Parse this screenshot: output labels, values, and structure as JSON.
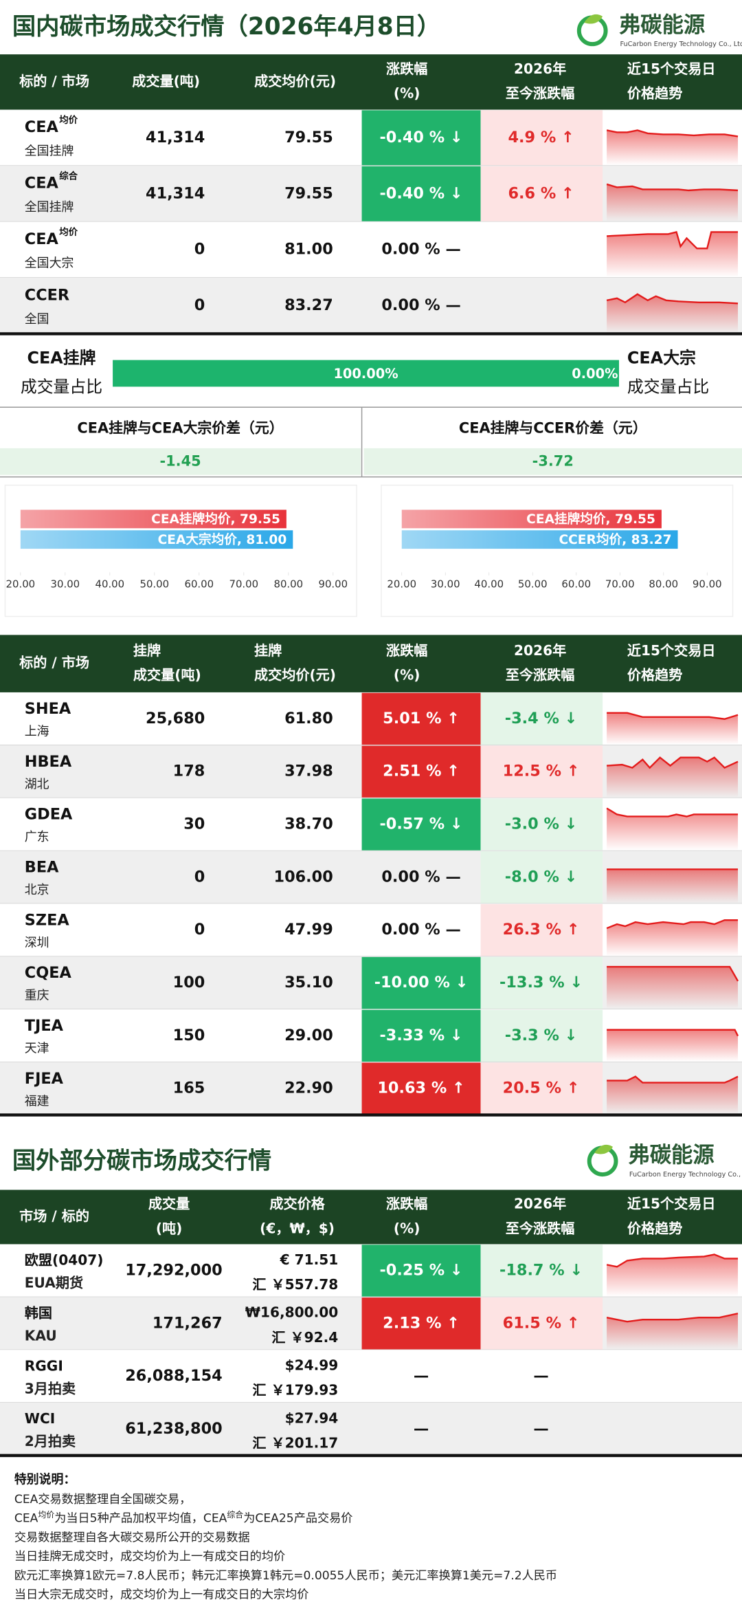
{
  "header": {
    "title": "国内碳市场成交行情（2026年4月8日）",
    "logo": "弗碳能源",
    "logo_sub": "FuCarbon Energy Technology Co., Ltd"
  },
  "domestic": {
    "columns": [
      [
        "标的 / 市场"
      ],
      [
        "成交量(吨)"
      ],
      [
        "成交均价(元)"
      ],
      [
        "涨跌幅",
        "(%)"
      ],
      [
        "2026年",
        "至今涨跌幅"
      ],
      [
        "近15个交易日",
        "价格趋势"
      ]
    ],
    "rows": [
      {
        "name": "CEA",
        "sup": "均价",
        "market": "全国挂牌",
        "volume": "41,314",
        "price": "79.55",
        "change": "-0.40 % ↓",
        "ytd": "4.9 % ↑"
      },
      {
        "name": "CEA",
        "sup": "综合",
        "market": "全国挂牌",
        "volume": "41,314",
        "price": "79.55",
        "change": "-0.40 % ↓",
        "ytd": "6.6 % ↑"
      },
      {
        "name": "CEA",
        "sup": "均价",
        "market": "全国大宗",
        "volume": "0",
        "price": "81.00",
        "change": "0.00 % —"
      },
      {
        "name": "CCER",
        "market": "全国",
        "volume": "0",
        "price": "83.27",
        "change": "0.00 % —"
      }
    ]
  },
  "share": {
    "left_label": [
      "CEA挂牌",
      "成交量占比"
    ],
    "right_label": [
      "CEA大宗",
      "成交量占比"
    ],
    "values": [
      100,
      0
    ],
    "value_labels": [
      "100.00%",
      "0.00%"
    ]
  },
  "spreads": [
    {
      "title": "CEA挂牌与CEA大宗价差（元）",
      "value": "-1.45"
    },
    {
      "title": "CEA挂牌与CCER价差（元）",
      "value": "-3.72"
    }
  ],
  "chart_data": [
    {
      "type": "bar",
      "orientation": "horizontal",
      "values": [
        79.55,
        81.0
      ],
      "value_labels": [
        "CEA挂牌均价, 79.55",
        "CEA大宗均价, 81.00"
      ],
      "colors": [
        "#e8333b",
        "#2aa7e8"
      ],
      "xlim": [
        20,
        90
      ],
      "xticks": [
        {
          "value": 20,
          "label": "20.00"
        },
        {
          "value": 30,
          "label": "30.00"
        },
        {
          "value": 40,
          "label": "40.00"
        },
        {
          "value": 50,
          "label": "50.00"
        },
        {
          "value": 60,
          "label": "60.00"
        },
        {
          "value": 70,
          "label": "70.00"
        },
        {
          "value": 80,
          "label": "80.00"
        },
        {
          "value": 90,
          "label": "90.00"
        }
      ]
    },
    {
      "type": "bar",
      "orientation": "horizontal",
      "values": [
        79.55,
        83.27
      ],
      "value_labels": [
        "CEA挂牌均价, 79.55",
        "CCER均价, 83.27"
      ],
      "colors": [
        "#e8333b",
        "#2aa7e8"
      ],
      "xlim": [
        20,
        90
      ],
      "xticks": [
        {
          "value": 20,
          "label": "20.00"
        },
        {
          "value": 30,
          "label": "30.00"
        },
        {
          "value": 40,
          "label": "40.00"
        },
        {
          "value": 50,
          "label": "50.00"
        },
        {
          "value": 60,
          "label": "60.00"
        },
        {
          "value": 70,
          "label": "70.00"
        },
        {
          "value": 80,
          "label": "80.00"
        },
        {
          "value": 90,
          "label": "90.00"
        }
      ]
    }
  ],
  "regional": {
    "columns": [
      [
        "标的 / 市场"
      ],
      [
        "挂牌",
        "成交量(吨)"
      ],
      [
        "挂牌",
        "成交均价(元)"
      ],
      [
        "涨跌幅",
        "(%)"
      ],
      [
        "2026年",
        "至今涨跌幅"
      ],
      [
        "近15个交易日",
        "价格趋势"
      ]
    ],
    "rows": [
      {
        "name": "SHEA",
        "market": "上海",
        "volume": "25,680",
        "price": "61.80",
        "change": "5.01 % ↑",
        "ytd": "-3.4 % ↓"
      },
      {
        "name": "HBEA",
        "market": "湖北",
        "volume": "178",
        "price": "37.98",
        "change": "2.51 % ↑",
        "ytd": "12.5 % ↑"
      },
      {
        "name": "GDEA",
        "market": "广东",
        "volume": "30",
        "price": "38.70",
        "change": "-0.57 % ↓",
        "ytd": "-3.0 % ↓"
      },
      {
        "name": "BEA",
        "market": "北京",
        "volume": "0",
        "price": "106.00",
        "change": "0.00 % —",
        "ytd": "-8.0 % ↓"
      },
      {
        "name": "SZEA",
        "market": "深圳",
        "volume": "0",
        "price": "47.99",
        "change": "0.00 % —",
        "ytd": "26.3 % ↑"
      },
      {
        "name": "CQEA",
        "market": "重庆",
        "volume": "100",
        "price": "35.10",
        "change": "-10.00 % ↓",
        "ytd": "-13.3 % ↓"
      },
      {
        "name": "TJEA",
        "market": "天津",
        "volume": "150",
        "price": "29.00",
        "change": "-3.33 % ↓",
        "ytd": "-3.3 % ↓"
      },
      {
        "name": "FJEA",
        "market": "福建",
        "volume": "165",
        "price": "22.90",
        "change": "10.63 % ↑",
        "ytd": "20.5 % ↑"
      }
    ]
  },
  "intl": {
    "title": "国外部分碳市场成交行情",
    "logo": "弗碳能源",
    "logo_sub": "FuCarbon Energy Technology Co., Ltd",
    "columns": [
      [
        "市场 / 标的"
      ],
      [
        "成交量",
        "(吨)"
      ],
      [
        "成交价格",
        "(€，₩，$)"
      ],
      [
        "涨跌幅",
        "(%)"
      ],
      [
        "2026年",
        "至今涨跌幅"
      ],
      [
        "近15个交易日",
        "价格趋势"
      ]
    ],
    "rows": [
      {
        "name": "欧盟(0407)",
        "market": "EUA期货",
        "volume": "17,292,000",
        "price": "€ 71.51",
        "rmb": "汇 ￥557.78",
        "change": "-0.25 % ↓",
        "ytd": "-18.7 % ↓"
      },
      {
        "name": "韩国",
        "market": "KAU",
        "volume": "171,267",
        "price": "₩16,800.00",
        "rmb": "汇 ￥92.4",
        "change": "2.13 % ↑",
        "ytd": "61.5 % ↑"
      },
      {
        "name": "RGGI",
        "market": "3月拍卖",
        "volume": "26,088,154",
        "price": "$24.99",
        "rmb": "汇 ￥179.93",
        "change": "—",
        "ytd": "—"
      },
      {
        "name": "WCI",
        "market": "2月拍卖",
        "volume": "61,238,800",
        "price": "$27.94",
        "rmb": "汇 ￥201.17",
        "change": "—",
        "ytd": "—"
      }
    ]
  },
  "notes": {
    "title": "特别说明：",
    "lines": [
      [
        {
          "text": "CEA交易数据整理自全国碳交易，"
        }
      ],
      [
        {
          "text": "CEA"
        },
        {
          "text": "均价",
          "sup": true
        },
        {
          "text": "为当日5种产品加权平均值，CEA"
        },
        {
          "text": "综合",
          "sup": true
        },
        {
          "text": "为CEA25产品交易价"
        }
      ],
      [
        {
          "text": "交易数据整理自各大碳交易所公开的交易数据"
        }
      ],
      [
        {
          "text": "当日挂牌无成交时，成交均价为上一有成交日的均价"
        }
      ],
      [
        {
          "text": "欧元汇率换算1欧元=7.8人民币；韩元汇率换算1韩元=0.0055人民币；美元汇率换算1美元=7.2人民币"
        }
      ],
      [
        {
          "text": "当日大宗无成交时，成交均价为上一有成交日的大宗均价"
        }
      ]
    ]
  }
}
